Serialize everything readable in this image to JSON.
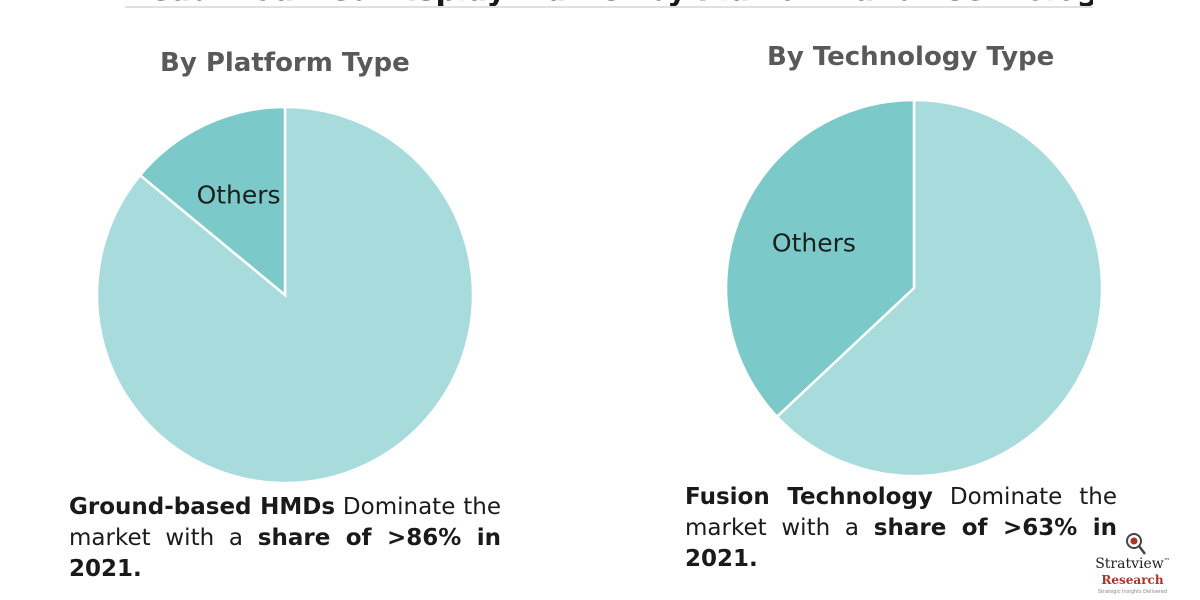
{
  "banner": {
    "partial_title": "Head Mounted Display Market by Platform and Technology"
  },
  "colors": {
    "slice_main": "#a8dcdc",
    "slice_other": "#7cc9c9",
    "slice_stroke": "#ffffff",
    "title": "#595959",
    "text": "#1a1a1a",
    "logo_accent": "#b0302a"
  },
  "chart_data": [
    {
      "type": "pie",
      "title": "By Platform Type",
      "slices": [
        {
          "label": "Ground-based HMDs",
          "value": 86,
          "shown_label": ""
        },
        {
          "label": "Others",
          "value": 14,
          "shown_label": "Others"
        }
      ],
      "caption": {
        "bold_1": "Ground-based HMDs",
        "text_1": " Dominate the market with a ",
        "bold_2": "share of >86% in 2021."
      }
    },
    {
      "type": "pie",
      "title": "By Technology Type",
      "slices": [
        {
          "label": "Fusion Technology",
          "value": 63,
          "shown_label": ""
        },
        {
          "label": "Others",
          "value": 37,
          "shown_label": "Others"
        }
      ],
      "caption": {
        "bold_1": "Fusion Technology",
        "text_1": " Dominate the market with a ",
        "bold_2": "share of >63% in 2021."
      }
    }
  ],
  "logo": {
    "name": "Stratview",
    "tm": "™",
    "sub": "Research",
    "tagline": "Strategic Insights Delivered"
  }
}
